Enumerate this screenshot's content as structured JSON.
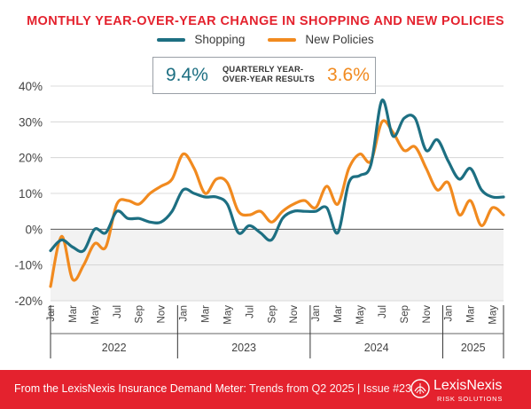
{
  "chart_data": {
    "type": "line",
    "title": "MONTHLY YEAR-OVER-YEAR CHANGE IN SHOPPING AND NEW POLICIES",
    "xlabel": "",
    "ylabel": "",
    "ylim": [
      -20,
      40
    ],
    "yticks": [
      "40%",
      "30%",
      "20%",
      "10%",
      "0%",
      "-10%",
      "-20%"
    ],
    "ytick_values": [
      40,
      30,
      20,
      10,
      0,
      -10,
      -20
    ],
    "grid": true,
    "negative_region_shaded": true,
    "legend_position": "top-center",
    "x": [
      "Jan 2022",
      "Feb 2022",
      "Mar 2022",
      "Apr 2022",
      "May 2022",
      "Jun 2022",
      "Jul 2022",
      "Aug 2022",
      "Sep 2022",
      "Oct 2022",
      "Nov 2022",
      "Dec 2022",
      "Jan 2023",
      "Feb 2023",
      "Mar 2023",
      "Apr 2023",
      "May 2023",
      "Jun 2023",
      "Jul 2023",
      "Aug 2023",
      "Sep 2023",
      "Oct 2023",
      "Nov 2023",
      "Dec 2023",
      "Jan 2024",
      "Feb 2024",
      "Mar 2024",
      "Apr 2024",
      "May 2024",
      "Jun 2024",
      "Jul 2024",
      "Aug 2024",
      "Sep 2024",
      "Oct 2024",
      "Nov 2024",
      "Dec 2024",
      "Jan 2025",
      "Feb 2025",
      "Mar 2025",
      "Apr 2025",
      "May 2025",
      "Jun 2025"
    ],
    "month_tick_labels": [
      "Jan",
      "Mar",
      "May",
      "Jul",
      "Sep",
      "Nov",
      "Jan",
      "Mar",
      "May",
      "Jul",
      "Sep",
      "Nov",
      "Jan",
      "Mar",
      "May",
      "Jul",
      "Sep",
      "Nov",
      "Jan",
      "Mar",
      "May"
    ],
    "month_tick_indices": [
      0,
      2,
      4,
      6,
      8,
      10,
      12,
      14,
      16,
      18,
      20,
      22,
      24,
      26,
      28,
      30,
      32,
      34,
      36,
      38,
      40
    ],
    "year_labels": [
      "2022",
      "2023",
      "2024",
      "2025"
    ],
    "year_start_indices": [
      0,
      12,
      24,
      36
    ],
    "year_end_indices": [
      11,
      23,
      35,
      41
    ],
    "series": [
      {
        "name": "Shopping",
        "color": "#1d6f82",
        "values": [
          -6,
          -3,
          -5,
          -6,
          0,
          -1,
          5,
          3,
          3,
          2,
          2,
          5,
          11,
          10,
          9,
          9,
          7,
          -1,
          1,
          -1,
          -3,
          3,
          5,
          5,
          5,
          6,
          -1,
          13,
          15,
          18,
          36,
          26,
          31,
          31,
          22,
          25,
          19,
          14,
          17,
          11,
          9,
          9
        ]
      },
      {
        "name": "New Policies",
        "color": "#f18a1f",
        "values": [
          -16,
          -2,
          -14,
          -10,
          -4,
          -5,
          7,
          8,
          7,
          10,
          12,
          14,
          21,
          17,
          10,
          14,
          13,
          5,
          4,
          5,
          2,
          5,
          7,
          8,
          6,
          12,
          7,
          17,
          21,
          19,
          30,
          27,
          22,
          23,
          17,
          11,
          13,
          4,
          8,
          1,
          6,
          4
        ]
      }
    ]
  },
  "summary_box": {
    "shopping_value": "9.4%",
    "label": "QUARTERLY YEAR-OVER-YEAR RESULTS",
    "new_policies_value": "3.6%"
  },
  "footer": {
    "source_bold": "From the LexisNexis Insurance Demand Meter:",
    "source_rest": " Trends from Q2 2025",
    "separator": "|",
    "issue": "Issue #23",
    "brand_name": "LexisNexis",
    "brand_sub": "RISK SOLUTIONS",
    "background_color": "#e4222e"
  }
}
